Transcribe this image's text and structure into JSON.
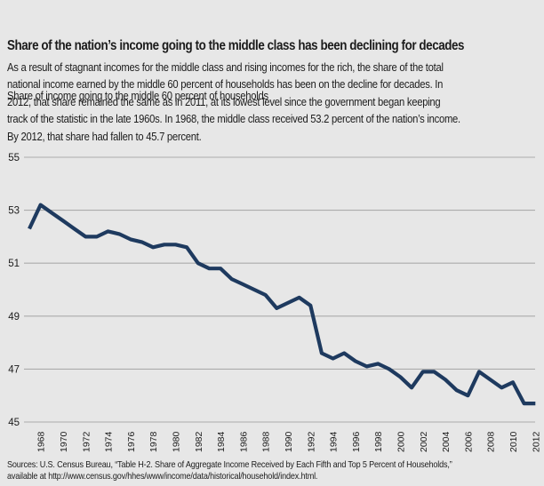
{
  "header": {
    "title": "Share of the nation’s income going to the middle class has been declining for decades",
    "subtitle": "Share of income going to the middle 60 percent of households"
  },
  "body": {
    "paragraph": "As a result of stagnant incomes for the middle class and rising incomes for the rich, the share of the total\nnational income earned by the middle 60 percent of households has been on the decline for decades. In\n2012, that share remained the same as in 2011, at its lowest level since the government began keeping\ntrack of the statistic in the late 1960s. In 1968, the middle class received 53.2 percent of the nation’s income.\nBy 2012, that share had fallen to 45.7 percent."
  },
  "chart_data": {
    "type": "line",
    "title": "Share of the nation’s income going to the middle class has been declining for decades",
    "subtitle": "Share of income going to the middle 60 percent of households",
    "series_name": "Share of income going to the middle 60 percent of households",
    "xlabel": "",
    "ylabel": "",
    "xlim": [
      1967,
      2012
    ],
    "ylim": [
      45,
      55
    ],
    "grid": true,
    "legend": "none",
    "y_ticks": [
      45,
      47,
      49,
      51,
      53,
      55
    ],
    "x_ticks": [
      1968,
      1970,
      1972,
      1974,
      1976,
      1978,
      1980,
      1982,
      1984,
      1986,
      1988,
      1990,
      1992,
      1994,
      1996,
      1998,
      2000,
      2002,
      2004,
      2006,
      2008,
      2010,
      2012
    ],
    "x": [
      1967,
      1968,
      1969,
      1970,
      1971,
      1972,
      1973,
      1974,
      1975,
      1976,
      1977,
      1978,
      1979,
      1980,
      1981,
      1982,
      1983,
      1984,
      1985,
      1986,
      1987,
      1988,
      1989,
      1990,
      1991,
      1992,
      1993,
      1994,
      1995,
      1996,
      1997,
      1998,
      1999,
      2000,
      2001,
      2002,
      2003,
      2004,
      2005,
      2006,
      2007,
      2008,
      2009,
      2010,
      2011,
      2012
    ],
    "values": [
      52.3,
      53.2,
      52.9,
      52.6,
      52.3,
      52.0,
      52.0,
      52.2,
      52.1,
      51.9,
      51.8,
      51.6,
      51.7,
      51.7,
      51.6,
      51.0,
      50.8,
      50.8,
      50.4,
      50.2,
      50.0,
      49.8,
      49.3,
      49.5,
      49.7,
      49.4,
      47.6,
      47.4,
      47.6,
      47.3,
      47.1,
      47.2,
      47.0,
      46.7,
      46.3,
      46.9,
      46.9,
      46.6,
      46.2,
      46.0,
      46.9,
      46.6,
      46.3,
      46.5,
      45.7,
      45.7
    ],
    "key_points": {
      "value_1968": 53.2,
      "value_2012": 45.7
    }
  },
  "footer": {
    "sources": "Sources: U.S. Census Bureau, “Table H-2. Share of Aggregate Income Received by Each Fifth and Top 5 Percent of Households,”\navailable at http://www.census.gov/hhes/www/income/data/historical/household/index.html."
  },
  "colors": {
    "background": "#e7e7e7",
    "line": "#1e3a5f",
    "grid": "#ababab",
    "text": "#1c1c1c"
  }
}
